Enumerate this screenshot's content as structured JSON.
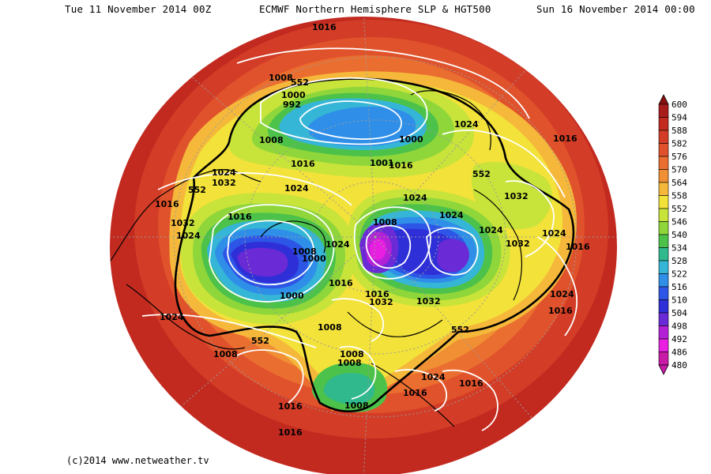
{
  "header": {
    "left": "Tue 11 November 2014 00Z",
    "center": "ECMWF Northern Hemisphere SLP & HGT500",
    "right": "Sun 16 November 2014 00:00"
  },
  "credit": "(c)2014 www.netweather.tv",
  "colorbar": {
    "levels": [
      "600",
      "594",
      "588",
      "582",
      "576",
      "570",
      "564",
      "558",
      "552",
      "546",
      "540",
      "534",
      "528",
      "522",
      "516",
      "510",
      "504",
      "498",
      "492",
      "486",
      "480"
    ],
    "colors": [
      "#8a1010",
      "#a81c1c",
      "#c22a20",
      "#d33c26",
      "#e0522b",
      "#ea6e30",
      "#f08f34",
      "#f5b83a",
      "#f3e23a",
      "#c8e33a",
      "#8fd63a",
      "#4cc24a",
      "#2fb98c",
      "#35b6d6",
      "#2f8fe8",
      "#2d56e6",
      "#2f2fd8",
      "#6a2ad6",
      "#b321d6",
      "#e81ee0",
      "#c81aa6"
    ]
  },
  "slp_labels": [
    "1016",
    "1008",
    "552",
    "1000",
    "992",
    "1008",
    "1024",
    "1000",
    "1016",
    "1001",
    "1016",
    "1024",
    "1032",
    "552",
    "1024",
    "552",
    "1032",
    "1016",
    "1024",
    "1016",
    "1008",
    "1032",
    "1024",
    "1008",
    "1024",
    "1024",
    "1032",
    "1024",
    "1016",
    "1000",
    "1024",
    "1016",
    "1024",
    "1032",
    "1000",
    "1016",
    "1032",
    "552",
    "1024",
    "1008",
    "1016",
    "552",
    "1008",
    "1008",
    "1008",
    "1024",
    "1016",
    "1016",
    "1016",
    "1016",
    "1008",
    "1016"
  ]
}
